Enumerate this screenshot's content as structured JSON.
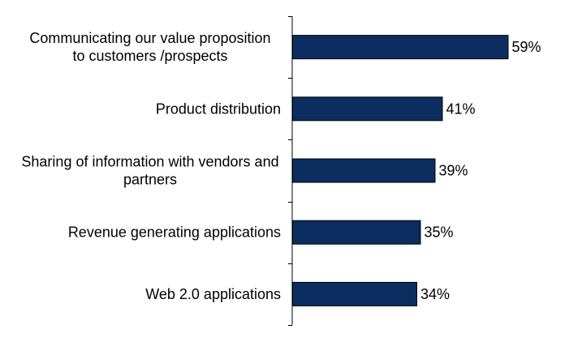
{
  "chart_data": {
    "type": "bar",
    "orientation": "horizontal",
    "title": "",
    "xlabel": "",
    "ylabel": "",
    "categories": [
      [
        "Communicating our value proposition",
        "to customers /prospects"
      ],
      [
        "Product distribution"
      ],
      [
        "Sharing of information with vendors and",
        "partners"
      ],
      [
        "Revenue generating applications"
      ],
      [
        "Web 2.0 applications"
      ]
    ],
    "values": [
      59,
      41,
      39,
      35,
      34
    ],
    "data_labels": [
      "59%",
      "41%",
      "39%",
      "35%",
      "34%"
    ],
    "value_unit": "%",
    "xlim": [
      0,
      100
    ],
    "grid": false,
    "legend": "none",
    "colors": {
      "bar_fill": "#0b2d5f",
      "bar_stroke": "#000000",
      "axis": "#000000",
      "text": "#000000"
    }
  }
}
